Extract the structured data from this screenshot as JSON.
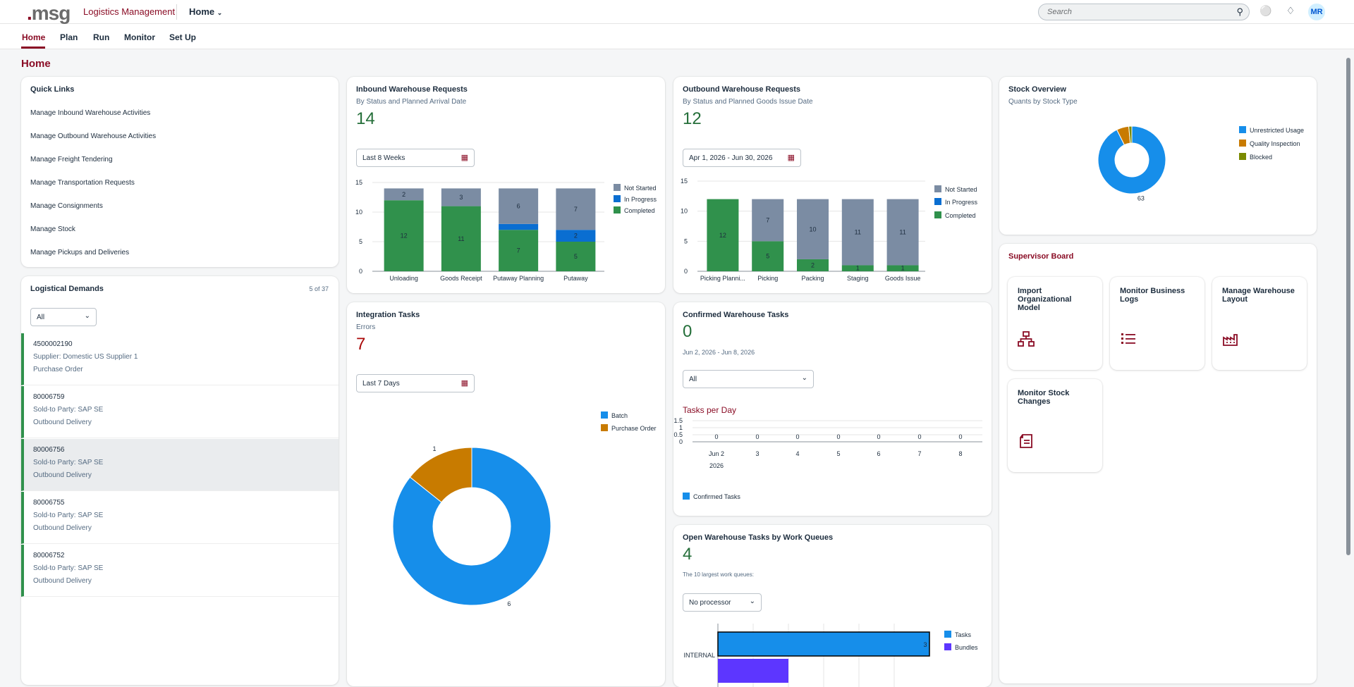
{
  "shell": {
    "logo_dot": ".",
    "logo_text": "msg",
    "app_title": "Logistics Management",
    "home_menu": "Home",
    "search_placeholder": "Search",
    "avatar_initials": "MR"
  },
  "tabs": [
    "Home",
    "Plan",
    "Run",
    "Monitor",
    "Set Up"
  ],
  "page_title": "Home",
  "quick_links": {
    "title": "Quick Links",
    "links": [
      "Manage Inbound Warehouse Activities",
      "Manage Outbound Warehouse Activities",
      "Manage Freight Tendering",
      "Manage Transportation Requests",
      "Manage Consignments",
      "Manage Stock",
      "Manage Pickups and Deliveries"
    ]
  },
  "logistical_demands": {
    "title": "Logistical Demands",
    "count": "5 of 37",
    "filter": "All",
    "items": [
      {
        "id": "4500002190",
        "line2": "Supplier: Domestic US Supplier 1",
        "line3": "Purchase Order"
      },
      {
        "id": "80006759",
        "line2": "Sold-to Party: SAP SE",
        "line3": "Outbound Delivery"
      },
      {
        "id": "80006756",
        "line2": "Sold-to Party: SAP SE",
        "line3": "Outbound Delivery"
      },
      {
        "id": "80006755",
        "line2": "Sold-to Party: SAP SE",
        "line3": "Outbound Delivery"
      },
      {
        "id": "80006752",
        "line2": "Sold-to Party: SAP SE",
        "line3": "Outbound Delivery"
      }
    ]
  },
  "inbound": {
    "title": "Inbound Warehouse Requests",
    "subtitle": "By Status and Planned Arrival Date",
    "kpi": "14",
    "filter": "Last 8 Weeks"
  },
  "outbound": {
    "title": "Outbound Warehouse Requests",
    "subtitle": "By Status and Planned Goods Issue Date",
    "kpi": "12",
    "filter": "Apr 1, 2026 - Jun 30, 2026"
  },
  "stock": {
    "title": "Stock Overview",
    "subtitle": "Quants by Stock Type"
  },
  "integration": {
    "title": "Integration Tasks",
    "subtitle": "Errors",
    "kpi": "7",
    "filter": "Last 7 Days"
  },
  "confirmed": {
    "title": "Confirmed Warehouse Tasks",
    "kpi": "0",
    "date_range": "Jun 2, 2026 - Jun 8, 2026",
    "filter": "All",
    "chart_title": "Tasks per Day"
  },
  "open_tasks": {
    "title": "Open Warehouse Tasks by Work Queues",
    "kpi": "4",
    "subtitle": "The 10 largest work queues:",
    "filter": "No processor"
  },
  "supervisor": {
    "title": "Supervisor Board",
    "tiles": [
      {
        "title": "Import Organizational Model",
        "icon": "org-chart-icon"
      },
      {
        "title": "Monitor Business Logs",
        "icon": "list-icon"
      },
      {
        "title": "Manage Warehouse Layout",
        "icon": "factory-icon"
      },
      {
        "title": "Monitor Stock Changes",
        "icon": "documents-icon"
      }
    ]
  },
  "colors": {
    "brand": "#8a0c25",
    "not_started": "#7b8ca3",
    "in_progress": "#0a6ed1",
    "completed": "#30914c",
    "blue": "#168eea",
    "orange": "#c87b00",
    "olive": "#7a8a00",
    "purple": "#5d36ff"
  },
  "chart_data": [
    {
      "type": "bar",
      "stacked": true,
      "categories": [
        "Unloading",
        "Goods Receipt",
        "Putaway Planning",
        "Putaway"
      ],
      "series": [
        {
          "name": "Completed",
          "values": [
            12,
            11,
            7,
            5
          ]
        },
        {
          "name": "In Progress",
          "values": [
            0,
            0,
            1,
            2
          ]
        },
        {
          "name": "Not Started",
          "values": [
            2,
            3,
            6,
            7
          ]
        }
      ],
      "ylim": [
        0,
        15
      ],
      "yticks": [
        0,
        5,
        10,
        15
      ],
      "legend": [
        "Not Started",
        "In Progress",
        "Completed"
      ]
    },
    {
      "type": "bar",
      "stacked": true,
      "categories": [
        "Picking Planni...",
        "Picking",
        "Packing",
        "Staging",
        "Goods Issue"
      ],
      "series": [
        {
          "name": "Completed",
          "values": [
            12,
            5,
            2,
            1,
            1
          ]
        },
        {
          "name": "In Progress",
          "values": [
            0,
            0,
            0,
            0,
            0
          ]
        },
        {
          "name": "Not Started",
          "values": [
            0,
            7,
            10,
            11,
            11
          ]
        }
      ],
      "ylim": [
        0,
        15
      ],
      "yticks": [
        0,
        5,
        10,
        15
      ],
      "legend": [
        "Not Started",
        "In Progress",
        "Completed"
      ]
    },
    {
      "type": "pie",
      "labels": [
        "Unrestricted Usage",
        "Quality Inspection",
        "Blocked"
      ],
      "values": [
        63,
        4,
        1
      ],
      "legend": [
        "Unrestricted Usage",
        "Quality Inspection",
        "Blocked"
      ]
    },
    {
      "type": "pie",
      "labels": [
        "Batch",
        "Purchase Order"
      ],
      "values": [
        6,
        1
      ],
      "legend": [
        "Batch",
        "Purchase Order"
      ]
    },
    {
      "type": "line",
      "title": "Tasks per Day",
      "x": [
        "Jun 2",
        "3",
        "4",
        "5",
        "6",
        "7",
        "8"
      ],
      "x_sublabel": "2026",
      "series": [
        {
          "name": "Confirmed Tasks",
          "values": [
            0,
            0,
            0,
            0,
            0,
            0,
            0
          ]
        }
      ],
      "yticks": [
        "1.5",
        "1",
        "0.5",
        "0"
      ],
      "legend": [
        "Confirmed Tasks"
      ]
    },
    {
      "type": "bar",
      "orientation": "horizontal",
      "categories": [
        "INTERNAL"
      ],
      "series": [
        {
          "name": "Tasks",
          "values": [
            3
          ]
        },
        {
          "name": "Bundles",
          "values": [
            1
          ]
        }
      ],
      "legend": [
        "Tasks",
        "Bundles"
      ]
    }
  ]
}
